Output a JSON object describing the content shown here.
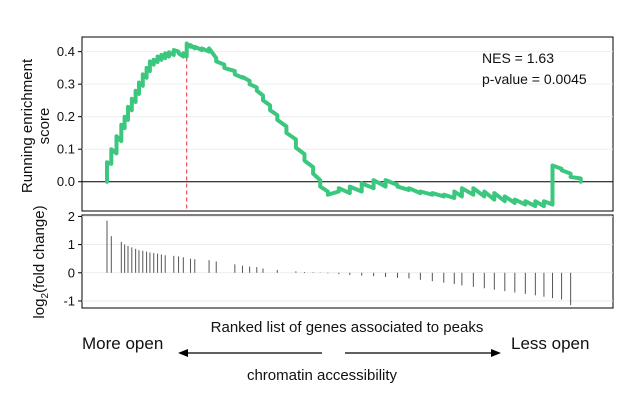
{
  "chart_data": [
    {
      "type": "line",
      "panel": "top",
      "ylabel_line1": "Running enrichment",
      "ylabel_line2": "score",
      "y_ticks": [
        0.0,
        0.1,
        0.2,
        0.3,
        0.4
      ],
      "y_tick_labels": [
        "0.0",
        "0.1",
        "0.2",
        "0.3",
        "0.4"
      ],
      "ylim": [
        -0.09,
        0.445
      ],
      "xlim": [
        0,
        1000
      ],
      "zero_line": true,
      "peak_marker_x": 167,
      "line_color": "#3cc77e",
      "peak_line_color": "#e8505b",
      "annotations": {
        "nes": "NES = 1.63",
        "pvalue": "p-value = 0.0045"
      },
      "series": [
        {
          "x": [
            0,
            0,
            9,
            9,
            20,
            20,
            30,
            30,
            37,
            37,
            44,
            44,
            52,
            52,
            60,
            60,
            67,
            67,
            75,
            75,
            83,
            83,
            90,
            90,
            98,
            98,
            106,
            106,
            114,
            114,
            122,
            122,
            130,
            130,
            140,
            140,
            150,
            150,
            160,
            160,
            167,
            167,
            175,
            175,
            184,
            184,
            199,
            199,
            214,
            214,
            229,
            229,
            246,
            246,
            268,
            268,
            284,
            284,
            299,
            299,
            314,
            314,
            327,
            327,
            342,
            342,
            357,
            357,
            376,
            376,
            396,
            396,
            414,
            414,
            432,
            432,
            447,
            447,
            463,
            463,
            486,
            486,
            509,
            509,
            534,
            534,
            559,
            559,
            584,
            584,
            609,
            609,
            633,
            633,
            657,
            657,
            682,
            682,
            706,
            706,
            728,
            728,
            744,
            744,
            768,
            768,
            791,
            791,
            812,
            812,
            834,
            834,
            855,
            855,
            877,
            877,
            898,
            898,
            916,
            916,
            934,
            934,
            953,
            953,
            972,
            972,
            993,
            993
          ],
          "y": [
            0,
            0.06,
            0.055,
            0.1,
            0.087,
            0.14,
            0.125,
            0.175,
            0.165,
            0.2,
            0.19,
            0.23,
            0.22,
            0.255,
            0.245,
            0.28,
            0.27,
            0.305,
            0.295,
            0.33,
            0.32,
            0.35,
            0.34,
            0.37,
            0.36,
            0.375,
            0.368,
            0.385,
            0.375,
            0.39,
            0.38,
            0.395,
            0.385,
            0.398,
            0.39,
            0.405,
            0.4,
            0.395,
            0.385,
            0.395,
            0.385,
            0.425,
            0.415,
            0.42,
            0.41,
            0.415,
            0.405,
            0.41,
            0.4,
            0.41,
            0.38,
            0.37,
            0.36,
            0.35,
            0.34,
            0.33,
            0.32,
            0.322,
            0.31,
            0.3,
            0.29,
            0.28,
            0.265,
            0.25,
            0.235,
            0.22,
            0.205,
            0.19,
            0.17,
            0.15,
            0.13,
            0.105,
            0.085,
            0.065,
            0.045,
            0.025,
            0.005,
            -0.015,
            -0.03,
            -0.04,
            -0.03,
            -0.02,
            -0.035,
            -0.015,
            -0.03,
            -0.005,
            -0.02,
            0.005,
            -0.015,
            0.005,
            -0.01,
            -0.015,
            -0.025,
            -0.02,
            -0.035,
            -0.03,
            -0.04,
            -0.035,
            -0.045,
            -0.04,
            -0.05,
            -0.03,
            -0.045,
            -0.02,
            -0.04,
            -0.02,
            -0.045,
            -0.03,
            -0.055,
            -0.035,
            -0.06,
            -0.045,
            -0.065,
            -0.055,
            -0.07,
            -0.06,
            -0.075,
            -0.06,
            -0.075,
            -0.06,
            -0.07,
            0.05,
            0.04,
            0.035,
            0.025,
            0.015,
            0.01,
            0.0
          ]
        }
      ]
    },
    {
      "type": "bar",
      "panel": "bottom",
      "ylabel": "log2(fold change)",
      "ylabel_base": "log",
      "ylabel_sub": "2",
      "ylabel_rest": "(fold change)",
      "y_ticks": [
        -1,
        0,
        1,
        2
      ],
      "y_tick_labels": [
        "-1",
        "0",
        "1",
        "2"
      ],
      "ylim": [
        -1.25,
        2.05
      ],
      "xlim": [
        0,
        1000
      ],
      "x": [
        0,
        9,
        30,
        37,
        44,
        52,
        60,
        67,
        75,
        83,
        90,
        98,
        106,
        114,
        122,
        140,
        150,
        160,
        175,
        184,
        214,
        229,
        268,
        284,
        299,
        314,
        327,
        357,
        396,
        414,
        432,
        447,
        463,
        486,
        509,
        534,
        559,
        584,
        609,
        633,
        657,
        682,
        706,
        728,
        744,
        768,
        791,
        812,
        834,
        855,
        877,
        898,
        916,
        934,
        953,
        972
      ],
      "values": [
        1.85,
        1.3,
        1.1,
        1.0,
        0.95,
        0.9,
        0.85,
        0.8,
        0.78,
        0.75,
        0.72,
        0.7,
        0.68,
        0.65,
        0.62,
        0.6,
        0.58,
        0.55,
        0.5,
        0.48,
        0.45,
        0.4,
        0.3,
        0.25,
        0.22,
        0.2,
        0.15,
        0.1,
        0.05,
        0.03,
        0.02,
        0.01,
        -0.02,
        -0.05,
        -0.08,
        -0.1,
        -0.12,
        -0.15,
        -0.18,
        -0.2,
        -0.25,
        -0.3,
        -0.35,
        -0.4,
        -0.45,
        -0.5,
        -0.55,
        -0.6,
        -0.65,
        -0.7,
        -0.75,
        -0.8,
        -0.85,
        -0.9,
        -0.95,
        -1.15
      ]
    }
  ],
  "xlabel": "Ranked list of genes associated to peaks",
  "left_label": "More open",
  "right_label": "Less open",
  "arrow_label": "chromatin accessibility"
}
